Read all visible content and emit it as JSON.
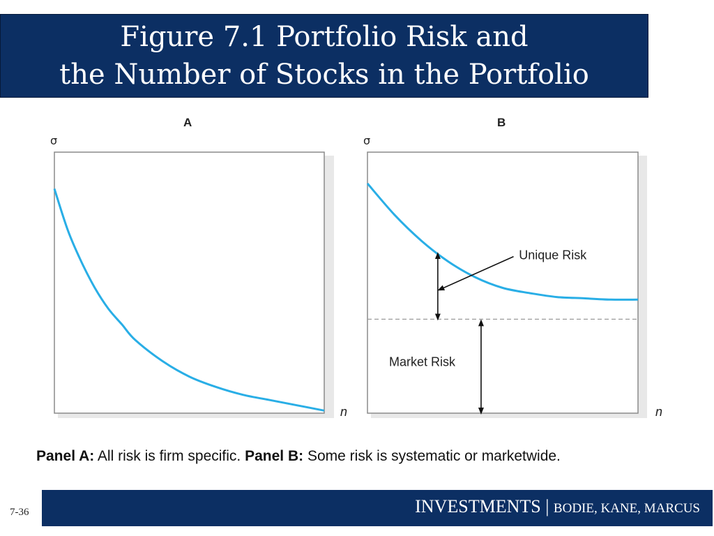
{
  "title": {
    "line1": "Figure 7.1 Portfolio Risk and",
    "line2": "the Number of Stocks in the Portfolio"
  },
  "colors": {
    "banner": "#0c2f63",
    "curve": "#29aee6",
    "frame": "#8a8a8a",
    "dashed": "#9a9a9a"
  },
  "chart_data": [
    {
      "type": "line",
      "panel_label": "A",
      "ylabel": "σ",
      "xlabel": "n",
      "ylim": [
        0,
        1
      ],
      "xlim": [
        0,
        1
      ],
      "series": [
        {
          "values_x": [
            0,
            0.05,
            0.1,
            0.15,
            0.2,
            0.25,
            0.3,
            0.4,
            0.5,
            0.6,
            0.7,
            0.8,
            0.9,
            1.0
          ],
          "values_y": [
            0.86,
            0.7,
            0.58,
            0.48,
            0.4,
            0.34,
            0.28,
            0.2,
            0.14,
            0.1,
            0.07,
            0.05,
            0.03,
            0.01
          ]
        }
      ],
      "grid": false
    },
    {
      "type": "line",
      "panel_label": "B",
      "ylabel": "σ",
      "xlabel": "n",
      "ylim": [
        0,
        1
      ],
      "xlim": [
        0,
        1
      ],
      "market_risk_level": 0.36,
      "series": [
        {
          "values_x": [
            0,
            0.1,
            0.2,
            0.3,
            0.4,
            0.5,
            0.6,
            0.7,
            0.8,
            0.9,
            1.0
          ],
          "values_y": [
            0.88,
            0.76,
            0.66,
            0.58,
            0.52,
            0.48,
            0.46,
            0.445,
            0.44,
            0.435,
            0.435
          ]
        }
      ],
      "annotations": {
        "unique_risk": "Unique Risk",
        "market_risk": "Market Risk"
      },
      "grid": false
    }
  ],
  "caption": {
    "a_label": "Panel A:",
    "a_text": " All risk is firm specific. ",
    "b_label": "Panel B:",
    "b_text": " Some risk is systematic or marketwide."
  },
  "footer": {
    "main": "INVESTMENTS",
    "sep": " | ",
    "authors": "BODIE, KANE, MARCUS"
  },
  "slide_number": "7-36"
}
